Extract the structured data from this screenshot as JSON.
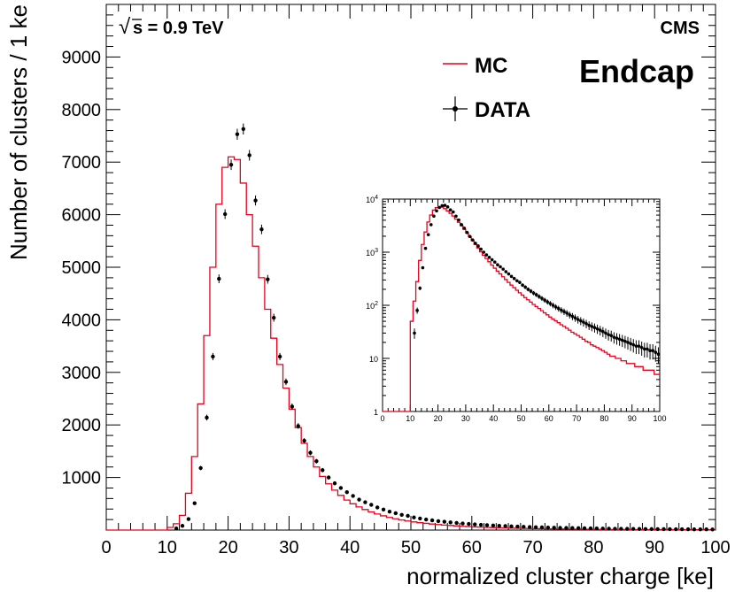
{
  "chart_data": {
    "type": "histogram",
    "title": "",
    "xlabel": "normalized cluster charge [ke]",
    "ylabel": "Number of clusters / 1 ke",
    "xlim": [
      0,
      100
    ],
    "ylim": [
      0,
      10000
    ],
    "x_ticks": [
      "0",
      "10",
      "20",
      "30",
      "40",
      "50",
      "60",
      "70",
      "80",
      "90",
      "100"
    ],
    "y_ticks": [
      "1000",
      "2000",
      "3000",
      "4000",
      "5000",
      "6000",
      "7000",
      "8000",
      "9000"
    ],
    "annotations": {
      "energy": "s = 0.9 TeV",
      "energy_prefix": "√",
      "experiment": "CMS",
      "region": "Endcap"
    },
    "legend": {
      "position": "top-right",
      "entries": [
        {
          "label": "MC",
          "style": "line",
          "color": "#e8001c"
        },
        {
          "label": "DATA",
          "style": "marker-errorbar",
          "color": "#000000"
        }
      ]
    },
    "series": [
      {
        "name": "MC",
        "kind": "step",
        "bin_edges_start": 0,
        "bin_width": 1,
        "values": [
          0,
          0,
          0,
          0,
          0,
          0,
          0,
          0,
          0,
          0,
          50,
          120,
          280,
          700,
          1400,
          2400,
          3700,
          5000,
          6200,
          6900,
          7100,
          7050,
          6600,
          6000,
          5400,
          4800,
          4200,
          3650,
          3150,
          2700,
          2300,
          1950,
          1650,
          1400,
          1200,
          1020,
          880,
          760,
          660,
          570,
          500,
          440,
          390,
          345,
          305,
          270,
          240,
          215,
          192,
          172,
          155,
          140,
          127,
          115,
          104,
          95,
          87,
          79,
          72,
          66,
          60,
          55,
          51,
          47,
          43,
          40,
          37,
          34,
          31,
          29,
          27,
          25,
          23,
          21,
          20,
          18,
          17,
          16,
          15,
          14,
          13,
          12,
          11,
          11,
          10,
          10,
          9,
          9,
          8,
          8,
          8,
          7,
          7,
          7,
          6,
          6,
          6,
          6,
          5,
          5
        ]
      },
      {
        "name": "DATA",
        "kind": "points",
        "x": [
          11.5,
          12.5,
          13.5,
          14.5,
          15.5,
          16.5,
          17.5,
          18.5,
          19.5,
          20.5,
          21.5,
          22.5,
          23.5,
          24.5,
          25.5,
          26.5,
          27.5,
          28.5,
          29.5,
          30.5,
          31.5,
          32.5,
          33.5,
          34.5,
          35.5,
          36.5,
          37.5,
          38.5,
          39.5,
          40.5,
          41.5,
          42.5,
          43.5,
          44.5,
          45.5,
          46.5,
          47.5,
          48.5,
          49.5,
          50.5,
          51.5,
          52.5,
          53.5,
          54.5,
          55.5,
          56.5,
          57.5,
          58.5,
          59.5,
          60.5,
          61.5,
          62.5,
          63.5,
          64.5,
          65.5,
          66.5,
          67.5,
          68.5,
          69.5,
          70.5,
          71.5,
          72.5,
          73.5,
          74.5,
          75.5,
          76.5,
          77.5,
          78.5,
          79.5,
          80.5,
          81.5,
          82.5,
          83.5,
          84.5,
          85.5,
          86.5,
          87.5,
          88.5,
          89.5,
          90.5,
          91.5,
          92.5,
          93.5,
          94.5,
          95.5,
          96.5,
          97.5,
          98.5,
          99.5
        ],
        "y": [
          30,
          80,
          210,
          510,
          1180,
          2140,
          3300,
          4780,
          6010,
          6950,
          7530,
          7630,
          7130,
          6270,
          5720,
          4770,
          4040,
          3300,
          2820,
          2350,
          1980,
          1700,
          1470,
          1310,
          1140,
          1000,
          890,
          800,
          720,
          650,
          580,
          530,
          480,
          430,
          390,
          350,
          320,
          290,
          270,
          240,
          220,
          200,
          185,
          170,
          158,
          146,
          135,
          125,
          116,
          108,
          100,
          93,
          87,
          81,
          76,
          71,
          66,
          62,
          58,
          54,
          51,
          48,
          45,
          42,
          40,
          38,
          36,
          34,
          32,
          30,
          28,
          27,
          25,
          24,
          23,
          22,
          21,
          20,
          19,
          18,
          17,
          17,
          16,
          15,
          15,
          14,
          14,
          13,
          12
        ]
      }
    ],
    "inset": {
      "xlim": [
        0,
        100
      ],
      "y_scale": "log",
      "ylim": [
        1,
        10000
      ],
      "x_ticks": [
        "0",
        "10",
        "20",
        "30",
        "40",
        "50",
        "60",
        "70",
        "80",
        "90",
        "100"
      ],
      "y_ticks": [
        {
          "base": "1",
          "exp": ""
        },
        {
          "base": "10",
          "exp": ""
        },
        {
          "base": "10",
          "exp": "2"
        },
        {
          "base": "10",
          "exp": "3"
        },
        {
          "base": "10",
          "exp": "4"
        }
      ]
    }
  }
}
